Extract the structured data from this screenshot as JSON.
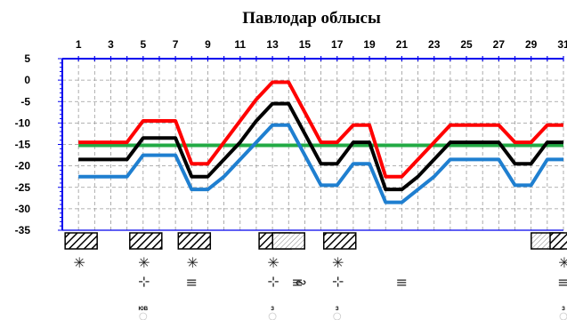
{
  "chart_data": {
    "type": "line",
    "title": "Павлодар облысы",
    "xlabel": "",
    "ylabel": "",
    "x_ticks": [
      "1",
      "3",
      "5",
      "7",
      "9",
      "11",
      "13",
      "15",
      "17",
      "19",
      "21",
      "23",
      "25",
      "27",
      "29",
      "31"
    ],
    "y_ticks": [
      "5",
      "0",
      "-5",
      "-10",
      "-15",
      "-20",
      "-25",
      "-30",
      "-35"
    ],
    "xlim": [
      0,
      31
    ],
    "ylim": [
      -35,
      5
    ],
    "grid": true,
    "x": [
      1,
      2,
      3,
      4,
      5,
      6,
      7,
      8,
      9,
      10,
      11,
      12,
      13,
      14,
      15,
      16,
      17,
      18,
      19,
      20,
      21,
      22,
      23,
      24,
      25,
      26,
      27,
      28,
      29,
      30,
      31
    ],
    "series": [
      {
        "color": "#ff0000",
        "values": [
          -14.5,
          -14.5,
          -14.5,
          -14.5,
          -9.5,
          -9.5,
          -9.5,
          -19.5,
          -19.5,
          -14.5,
          -9.5,
          -4.5,
          -0.5,
          -0.5,
          -7.5,
          -14.5,
          -14.5,
          -10.5,
          -10.5,
          -22.5,
          -22.5,
          -18.5,
          -14.5,
          -10.5,
          -10.5,
          -10.5,
          -10.5,
          -14.5,
          -14.5,
          -10.5,
          -10.5
        ]
      },
      {
        "color": "#000000",
        "values": [
          -18.5,
          -18.5,
          -18.5,
          -18.5,
          -13.5,
          -13.5,
          -13.5,
          -22.5,
          -22.5,
          -18.5,
          -14.5,
          -9.5,
          -5.5,
          -5.5,
          -12.5,
          -19.5,
          -19.5,
          -14.5,
          -14.5,
          -25.5,
          -25.5,
          -22.5,
          -18.5,
          -14.5,
          -14.5,
          -14.5,
          -14.5,
          -19.5,
          -19.5,
          -14.5,
          -14.5
        ]
      },
      {
        "color": "#1f7fd0",
        "values": [
          -22.5,
          -22.5,
          -22.5,
          -22.5,
          -17.5,
          -17.5,
          -17.5,
          -25.5,
          -25.5,
          -22.5,
          -18.5,
          -14.5,
          -10.5,
          -10.5,
          -17.5,
          -24.5,
          -24.5,
          -19.5,
          -19.5,
          -28.5,
          -28.5,
          -25.5,
          -22.5,
          -18.5,
          -18.5,
          -18.5,
          -18.5,
          -24.5,
          -24.5,
          -18.5,
          -18.5
        ]
      },
      {
        "color": "#22aa44",
        "values": [
          -15.2,
          -15.2,
          -15.2,
          -15.2,
          -15.2,
          -15.2,
          -15.2,
          -15.2,
          -15.2,
          -15.2,
          -15.2,
          -15.2,
          -15.2,
          -15.2,
          -15.2,
          -15.2,
          -15.2,
          -15.2,
          -15.2,
          -15.2,
          -15.2,
          -15.2,
          -15.2,
          -15.2,
          -15.2,
          -15.2,
          -15.2,
          -15.2,
          -15.2,
          -15.2,
          -15.2
        ]
      }
    ],
    "weather_symbols": {
      "snow": [
        "1",
        "5",
        "8",
        "13",
        "17",
        "31"
      ],
      "wind": [
        "5",
        "13",
        "17"
      ],
      "ice": [
        "13"
      ],
      "fog": [
        "8",
        "14",
        "21",
        "31"
      ],
      "hatch_blocks": [
        {
          "day": 1,
          "type": "cloudy"
        },
        {
          "day": 5,
          "type": "cloudy"
        },
        {
          "day": 8,
          "type": "cloudy"
        },
        {
          "day": 13,
          "type": "cloudy"
        },
        {
          "day": 14,
          "type": "partly"
        },
        {
          "day": 17,
          "type": "cloudy"
        },
        {
          "day": 30,
          "type": "partly"
        },
        {
          "day": 31,
          "type": "cloudy"
        }
      ],
      "wind_labels": [
        {
          "day": 5,
          "text": "ЮВ"
        },
        {
          "day": 13,
          "text": "З"
        },
        {
          "day": 17,
          "text": "З"
        },
        {
          "day": 31,
          "text": "З"
        }
      ]
    }
  }
}
